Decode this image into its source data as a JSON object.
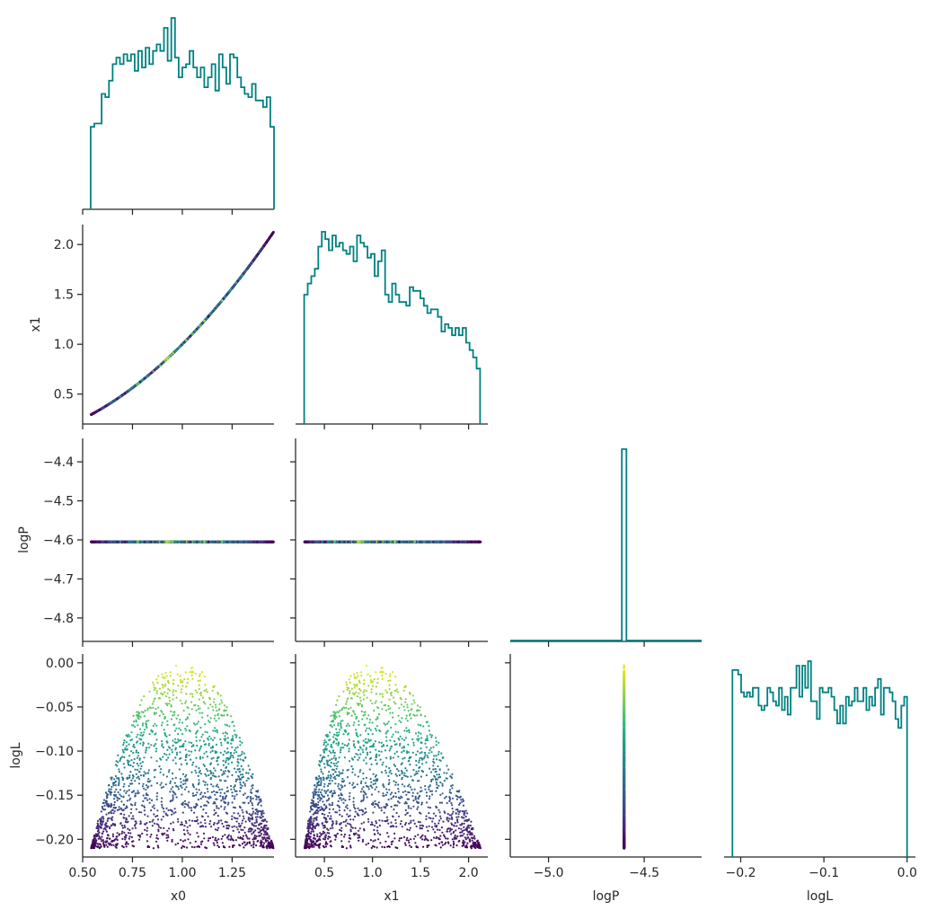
{
  "chart_data": {
    "type": "scatter",
    "variables": [
      "x0",
      "x1",
      "logP",
      "logL"
    ],
    "colormap": "viridis",
    "hist_color": "#008080",
    "axis_ranges": {
      "x0": [
        0.5,
        1.46
      ],
      "x1": [
        0.2,
        2.2
      ],
      "logP": [
        -5.2,
        -4.2
      ],
      "logL": [
        -0.22,
        0.01
      ],
      "logP_y": [
        -4.86,
        -4.34
      ]
    },
    "ticks": {
      "x0": {
        "values": [
          0.5,
          0.75,
          1.0,
          1.25
        ],
        "labels": [
          "0.50",
          "0.75",
          "1.00",
          "1.25"
        ]
      },
      "x1": {
        "values": [
          0.5,
          1.0,
          1.5,
          2.0
        ],
        "labels": [
          "0.5",
          "1.0",
          "1.5",
          "2.0"
        ]
      },
      "logP_x": {
        "values": [
          -5.0,
          -4.5
        ],
        "labels": [
          "−5.0",
          "−4.5"
        ]
      },
      "logP_y": {
        "values": [
          -4.4,
          -4.5,
          -4.6,
          -4.7,
          -4.8
        ],
        "labels": [
          "−4.4",
          "−4.5",
          "−4.6",
          "−4.7",
          "−4.8"
        ]
      },
      "logL": {
        "values": [
          -0.2,
          -0.1,
          0.0
        ],
        "labels": [
          "−0.2",
          "−0.1",
          "0.0"
        ]
      },
      "logL_y": {
        "values": [
          0.0,
          -0.05,
          -0.1,
          -0.15,
          -0.2
        ],
        "labels": [
          "0.00",
          "−0.05",
          "−0.10",
          "−0.15",
          "−0.20"
        ]
      }
    },
    "axis_labels": {
      "x": [
        "x0",
        "x1",
        "logP",
        "logL"
      ],
      "y": [
        "x1",
        "logP",
        "logL"
      ]
    },
    "histograms": {
      "x0": [
        25,
        26,
        26,
        35,
        34,
        39,
        44,
        46,
        44,
        47,
        45,
        47,
        42,
        48,
        43,
        49,
        44,
        48,
        50,
        48,
        55,
        45,
        58,
        46,
        40,
        43,
        44,
        48,
        43,
        40,
        43,
        37,
        40,
        44,
        36,
        47,
        43,
        38,
        47,
        46,
        40,
        37,
        35,
        34,
        38,
        33,
        33,
        31,
        34,
        25
      ],
      "x1": [
        35,
        38,
        40,
        42,
        48,
        52,
        50,
        47,
        51,
        48,
        49,
        47,
        46,
        48,
        44,
        51,
        49,
        48,
        45,
        46,
        40,
        44,
        47,
        35,
        33,
        38,
        35,
        33,
        33,
        32,
        37,
        36,
        36,
        34,
        32,
        30,
        31,
        31,
        29,
        25,
        27,
        26,
        24,
        26,
        24,
        26,
        22,
        20,
        18,
        15
      ],
      "logP": {
        "value": -4.605,
        "height": 1.0
      },
      "logL": [
        42,
        42,
        41,
        37,
        36,
        37,
        36,
        38,
        38,
        34,
        33,
        34,
        38,
        37,
        35,
        34,
        38,
        33,
        36,
        32,
        38,
        38,
        43,
        36,
        43,
        38,
        44,
        35,
        35,
        31,
        38,
        37,
        37,
        38,
        36,
        33,
        30,
        34,
        30,
        36,
        34,
        35,
        38,
        35,
        35,
        38,
        33,
        36,
        34,
        38,
        40,
        32,
        38,
        38,
        37,
        35,
        31,
        29,
        34,
        36
      ]
    }
  }
}
